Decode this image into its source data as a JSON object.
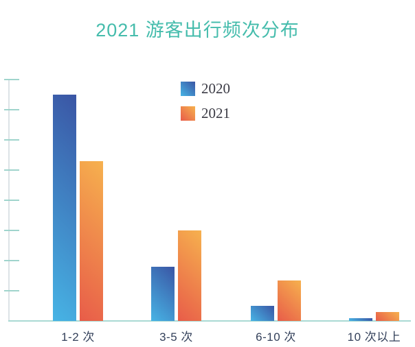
{
  "title": "2021 游客出行频次分布",
  "legend": {
    "items": [
      {
        "label": "2020",
        "gradient": [
          "#47B4E5",
          "#3A55A4"
        ]
      },
      {
        "label": "2021",
        "gradient": [
          "#E85C49",
          "#F6B14E"
        ]
      }
    ]
  },
  "chart_data": {
    "type": "bar",
    "title": "2021 游客出行频次分布",
    "categories": [
      "1-2 次",
      "3-5 次",
      "6-10 次",
      "10 次以上"
    ],
    "series": [
      {
        "name": "2020",
        "values": [
          75,
          18,
          5,
          1
        ],
        "gradient": [
          "#47B4E5",
          "#3A55A4"
        ]
      },
      {
        "name": "2021",
        "values": [
          53,
          30,
          13.5,
          3
        ],
        "gradient": [
          "#E85C49",
          "#F6B14E"
        ]
      }
    ],
    "xlabel": "",
    "ylabel": "",
    "ylim": [
      0,
      80
    ],
    "y_tick_count": 8,
    "y_tick_labels_shown": false,
    "grid": false,
    "legend_position": "upper-center"
  },
  "colors": {
    "background": "#FFFFFF",
    "title": "#45BCAC",
    "tick": "#9FD4CC",
    "x_axis": "#A9D9D3",
    "y_axis_line": "#DCE3E6",
    "x_label": "#33405A",
    "legend_text": "#3A3A44"
  }
}
